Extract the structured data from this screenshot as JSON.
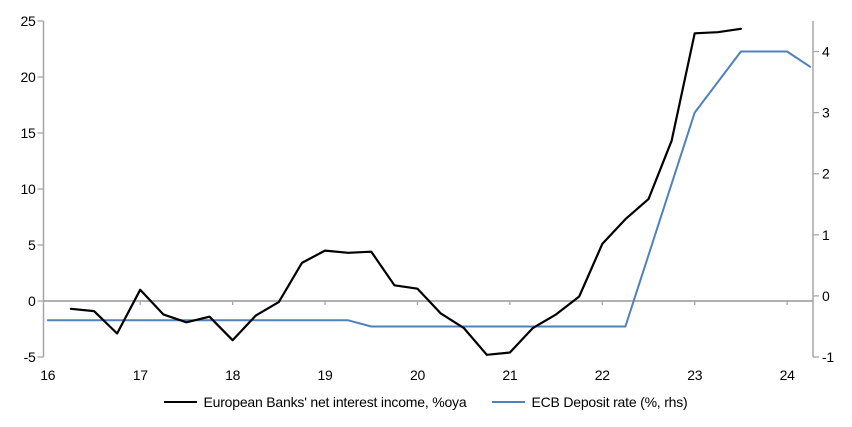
{
  "chart_data": {
    "type": "line",
    "title": "",
    "grid": "zero-line-only",
    "legend_position": "bottom-center",
    "x_axis": {
      "label": "",
      "tick_values": [
        16,
        17,
        18,
        19,
        20,
        21,
        22,
        23,
        24
      ],
      "range": [
        16,
        24.28
      ]
    },
    "y_left_axis": {
      "label": "",
      "tick_values": [
        -5,
        0,
        5,
        10,
        15,
        20,
        25
      ],
      "range": [
        -5,
        25
      ]
    },
    "y_right_axis": {
      "label": "",
      "tick_values": [
        -1,
        0,
        1,
        2,
        3,
        4
      ],
      "range": [
        -1,
        4.5
      ]
    },
    "series": [
      {
        "name": "European Banks' net interest income, %oya",
        "axis": "left",
        "color": "#000000",
        "stroke_width": 2.2,
        "points": [
          [
            16.25,
            -0.7
          ],
          [
            16.5,
            -0.9
          ],
          [
            16.75,
            -2.9
          ],
          [
            17.0,
            1.0
          ],
          [
            17.25,
            -1.2
          ],
          [
            17.5,
            -1.9
          ],
          [
            17.75,
            -1.4
          ],
          [
            18.0,
            -3.5
          ],
          [
            18.25,
            -1.3
          ],
          [
            18.5,
            -0.1
          ],
          [
            18.75,
            3.4
          ],
          [
            19.0,
            4.5
          ],
          [
            19.25,
            4.3
          ],
          [
            19.5,
            4.4
          ],
          [
            19.75,
            1.4
          ],
          [
            20.0,
            1.1
          ],
          [
            20.25,
            -1.1
          ],
          [
            20.5,
            -2.4
          ],
          [
            20.75,
            -4.8
          ],
          [
            21.0,
            -4.6
          ],
          [
            21.25,
            -2.4
          ],
          [
            21.5,
            -1.2
          ],
          [
            21.75,
            0.4
          ],
          [
            22.0,
            5.1
          ],
          [
            22.25,
            7.3
          ],
          [
            22.5,
            9.1
          ],
          [
            22.75,
            14.3
          ],
          [
            23.0,
            23.9
          ],
          [
            23.25,
            24.0
          ],
          [
            23.5,
            24.3
          ]
        ]
      },
      {
        "name": "ECB Deposit rate (%, rhs)",
        "axis": "right",
        "color": "#4f81bd",
        "stroke_width": 2,
        "points": [
          [
            16.0,
            -0.4
          ],
          [
            19.25,
            -0.4
          ],
          [
            19.5,
            -0.5
          ],
          [
            22.25,
            -0.5
          ],
          [
            23.0,
            3.0
          ],
          [
            23.5,
            4.0
          ],
          [
            24.0,
            4.0
          ],
          [
            24.25,
            3.75
          ]
        ]
      }
    ]
  },
  "legend": {
    "items": [
      {
        "label": "European Banks' net interest income, %oya",
        "color": "#000000"
      },
      {
        "label": "ECB Deposit rate (%, rhs)",
        "color": "#4f81bd"
      }
    ]
  },
  "colors": {
    "background": "#ffffff",
    "axis_gray": "#a6a6a6",
    "text": "#000000",
    "series_black": "#000000",
    "series_blue": "#4f81bd"
  }
}
